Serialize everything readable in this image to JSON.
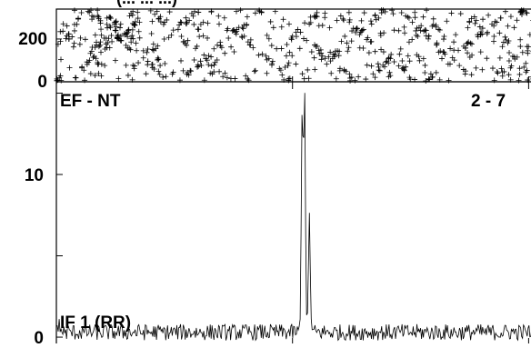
{
  "header_partial": "(... ... ...)",
  "top_panel": {
    "yticks": [
      0,
      200
    ],
    "ylim": [
      0,
      340
    ],
    "marker": "+"
  },
  "bottom_panel": {
    "label_left": "EF - NT",
    "label_right": "2 - 7",
    "label_bottom": "IF 1 (RR)",
    "yticks": [
      0,
      10
    ],
    "ylim": [
      -0.5,
      15.7
    ]
  },
  "chart_data": [
    {
      "type": "scatter",
      "panel": "top",
      "title": "",
      "xlabel": "",
      "ylabel": "",
      "marker": "+",
      "ylim": [
        0,
        340
      ],
      "yticks": [
        0,
        200
      ],
      "description_points": "dense field of + markers spanning the full x range and y from 0 to ~340, forming diagonal streak patterns"
    },
    {
      "type": "line",
      "panel": "bottom",
      "title": "",
      "xlabel": "",
      "ylabel": "",
      "ylim": [
        -0.5,
        15.7
      ],
      "yticks": [
        0,
        10
      ],
      "baseline": 0.3,
      "noise_amplitude": 0.5,
      "peaks": [
        {
          "x_frac": 0.51,
          "y": 14.0
        },
        {
          "x_frac": 0.515,
          "y": 15.0
        },
        {
          "x_frac": 0.525,
          "y": 7.2
        }
      ]
    }
  ]
}
